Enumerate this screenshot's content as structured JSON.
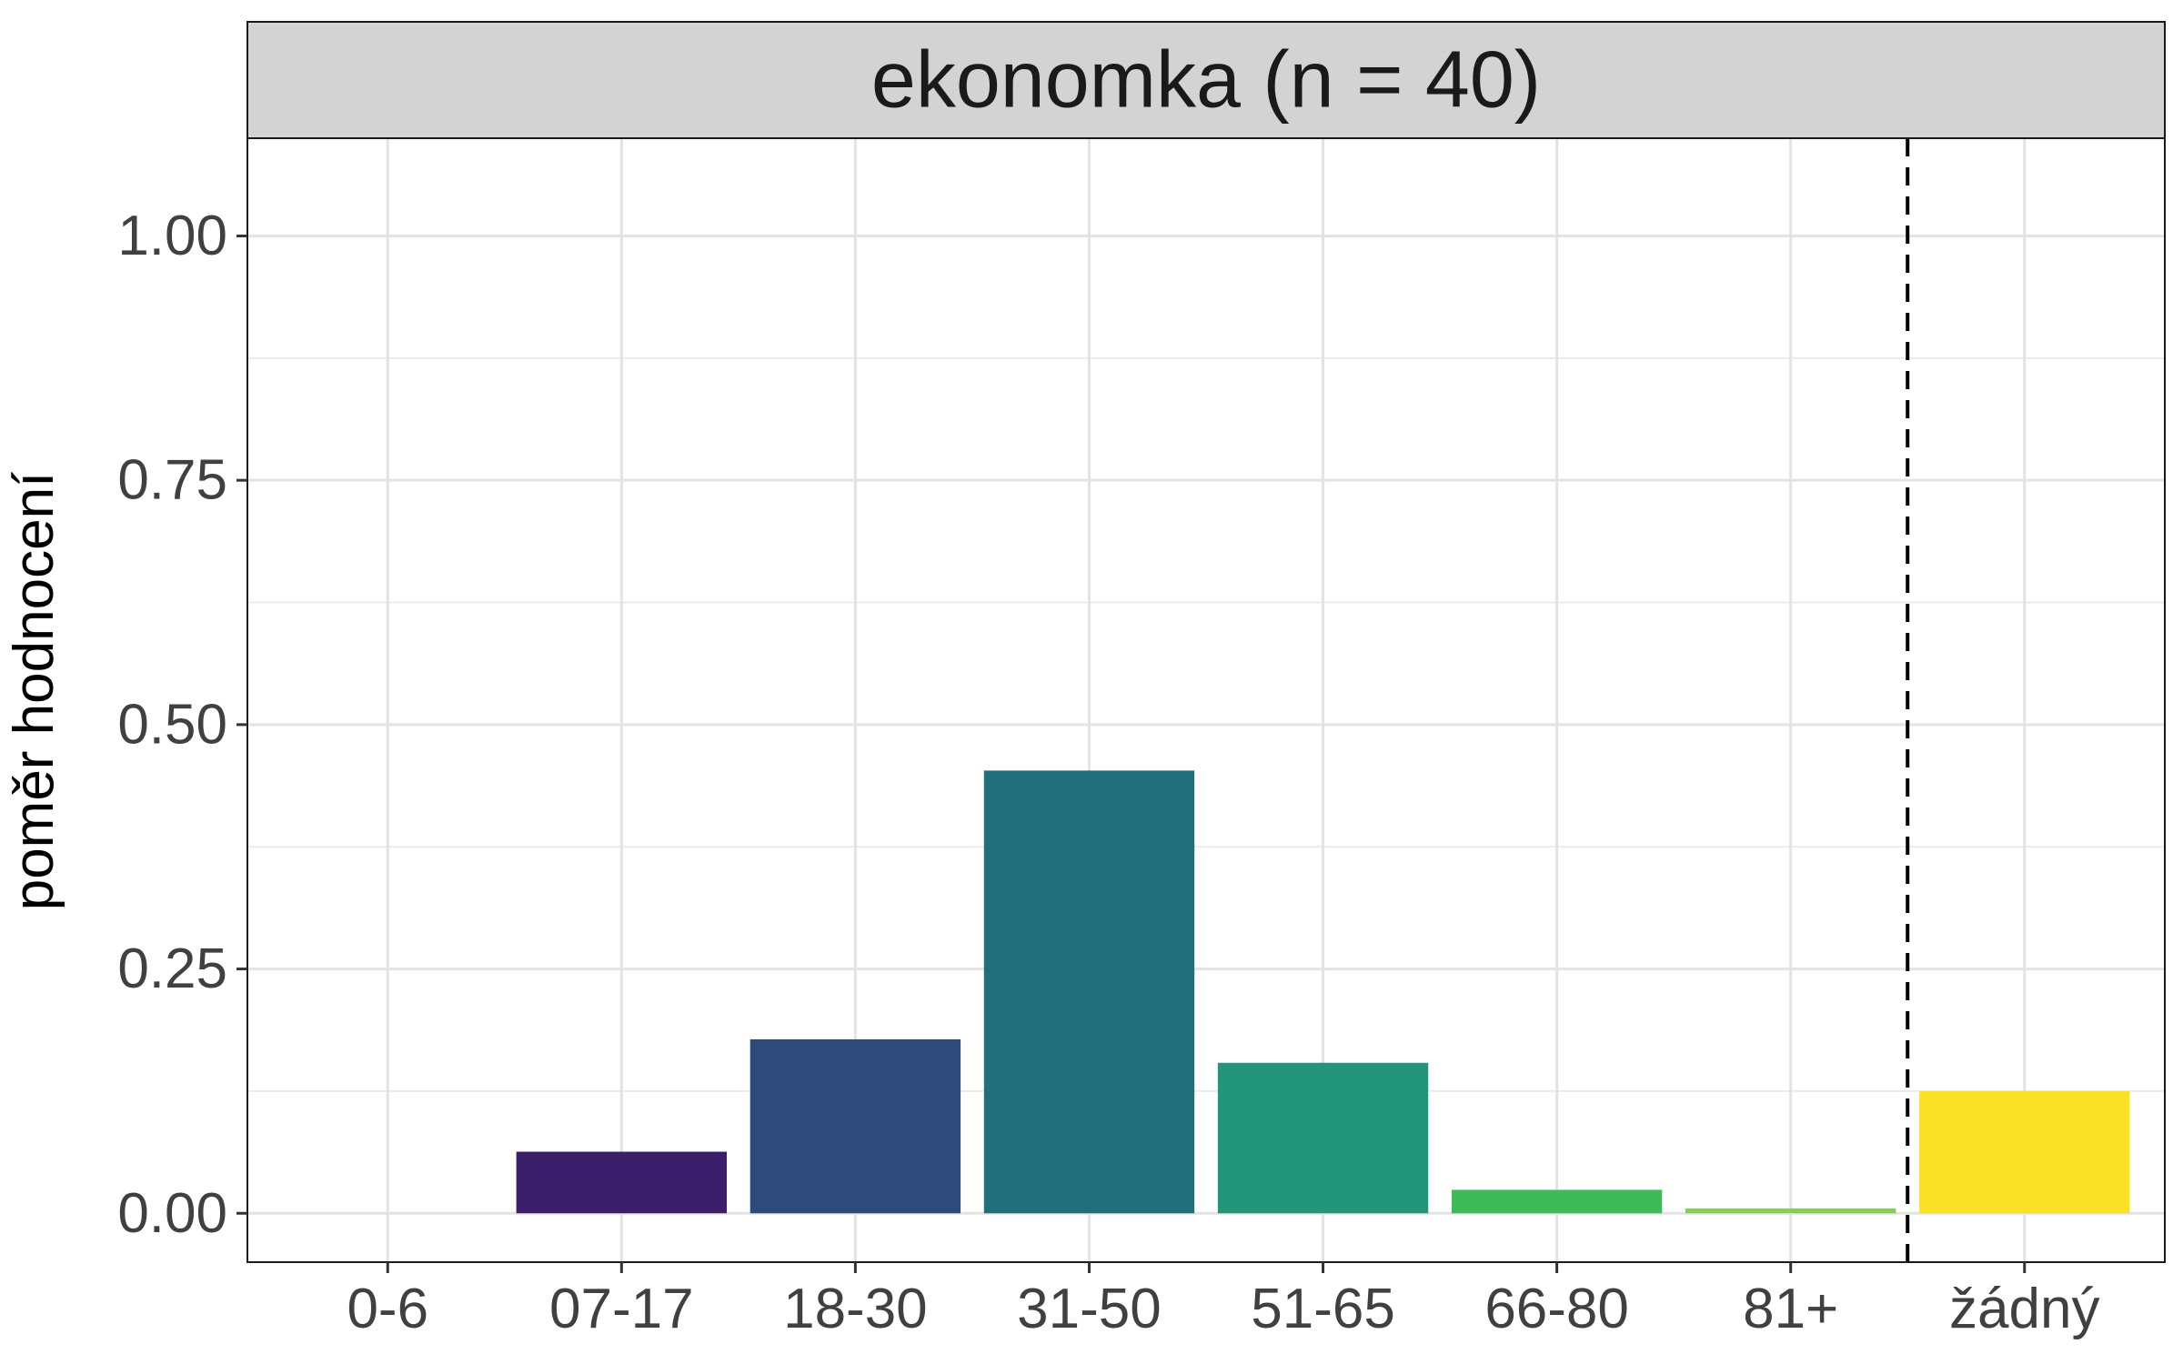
{
  "chart_data": {
    "type": "bar",
    "facet_title": "ekonomka (n = 40)",
    "ylabel": "poměr hodnocení",
    "xlabel": "",
    "categories": [
      "0-6",
      "07-17",
      "18-30",
      "31-50",
      "51-65",
      "66-80",
      "81+",
      "žádný"
    ],
    "values": [
      0.0,
      0.063,
      0.178,
      0.453,
      0.154,
      0.024,
      0.005,
      0.125
    ],
    "colors": [
      "#440154",
      "#3B1F6B",
      "#2D4A7A",
      "#226F7C",
      "#22957A",
      "#3EBB59",
      "#82D34B",
      "#FBE125"
    ],
    "ylim": [
      -0.05,
      1.1
    ],
    "yticks": [
      0.0,
      0.25,
      0.5,
      0.75,
      1.0
    ],
    "ytick_labels": [
      "0.00",
      "0.25",
      "0.50",
      "0.75",
      "1.00"
    ],
    "reference_line": {
      "between": [
        "81+",
        "žádný"
      ],
      "style": "dashed"
    },
    "grid": true,
    "legend": "none"
  }
}
